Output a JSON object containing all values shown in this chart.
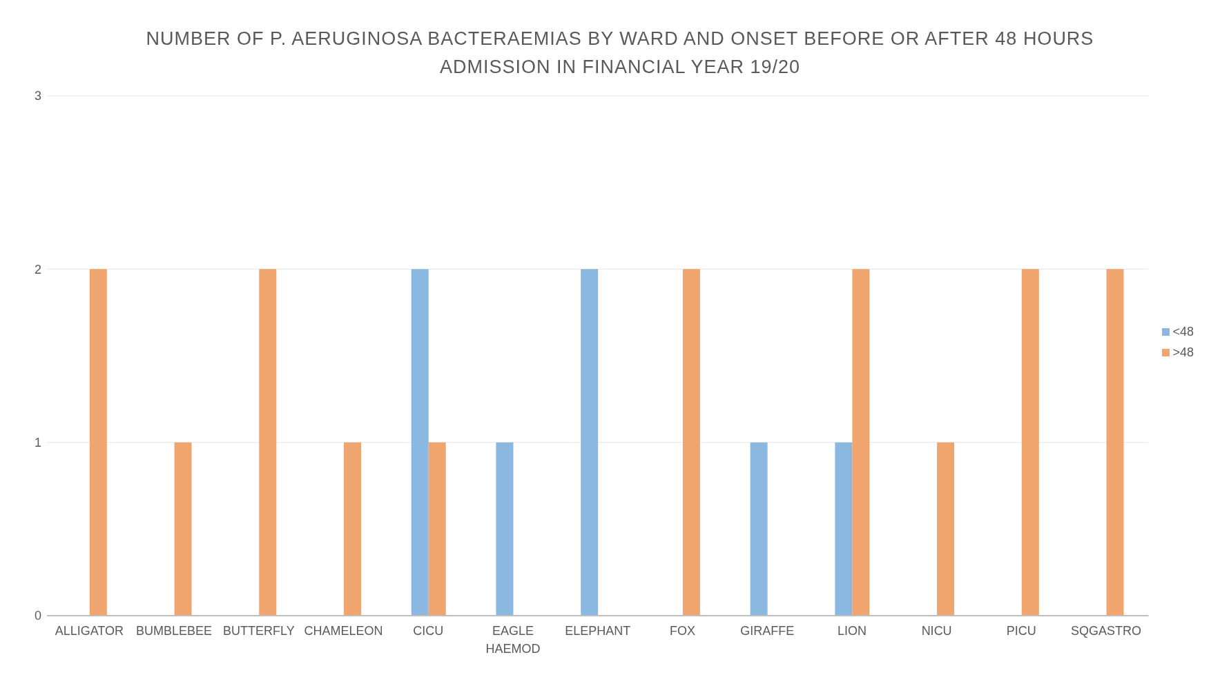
{
  "chart_data": {
    "type": "bar",
    "title": "NUMBER OF P. AERUGINOSA BACTERAEMIAS BY WARD AND ONSET BEFORE OR AFTER 48 HOURS ADMISSION IN FINANCIAL YEAR 19/20",
    "categories": [
      "ALLIGATOR",
      "BUMBLEBEE",
      "BUTTERFLY",
      "CHAMELEON",
      "CICU",
      "EAGLE HAEMOD",
      "ELEPHANT",
      "FOX",
      "GIRAFFE",
      "LION",
      "NICU",
      "PICU",
      "SQGASTRO"
    ],
    "series": [
      {
        "name": "<48",
        "color": "#8bb8e0",
        "values": [
          null,
          null,
          null,
          null,
          2,
          1,
          2,
          null,
          1,
          1,
          null,
          null,
          null
        ]
      },
      {
        "name": ">48",
        "color": "#f0a46e",
        "values": [
          2,
          1,
          2,
          1,
          1,
          null,
          null,
          2,
          null,
          2,
          1,
          2,
          2
        ]
      }
    ],
    "ylim": [
      0,
      3
    ],
    "yticks": [
      0,
      1,
      2,
      3
    ],
    "grid": "y",
    "legend": "right"
  }
}
